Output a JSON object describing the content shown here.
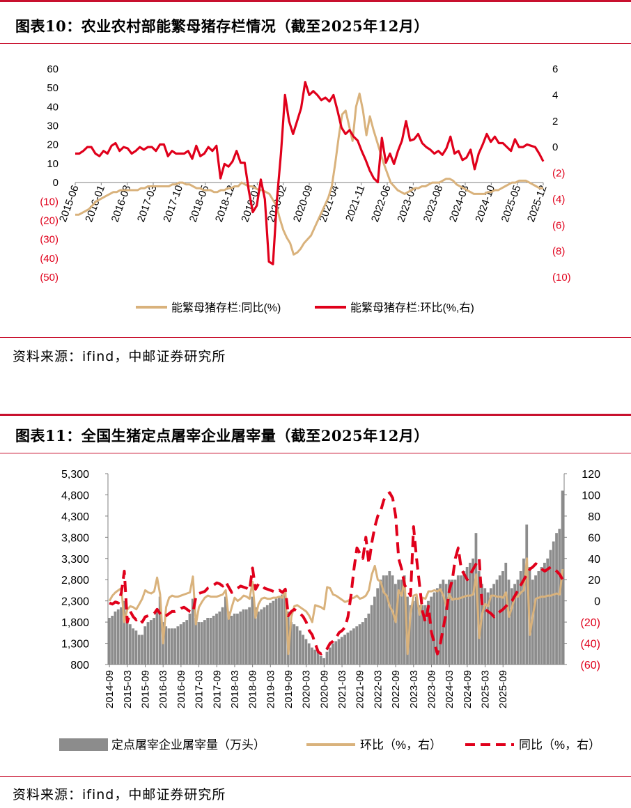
{
  "figure10": {
    "title": "图表10：农业农村部能繁母猪存栏情况（截至2025年12月）",
    "source": "资料来源：ifind，中邮证券研究所",
    "chart_data": {
      "type": "line",
      "title": "农业农村部能繁母猪存栏情况",
      "x_ticks": [
        "2015-06",
        "2016-01",
        "2016-08",
        "2017-03",
        "2017-10",
        "2018-05",
        "2018-12",
        "2019-07",
        "2020-02",
        "2020-09",
        "2021-04",
        "2021-11",
        "2022-06",
        "2023-01",
        "2023-08",
        "2024-03",
        "2024-10",
        "2025-05",
        "2025-12"
      ],
      "y_left_ticks": [
        "60",
        "50",
        "40",
        "30",
        "20",
        "10",
        "0",
        "(10)",
        "(20)",
        "(30)",
        "(40)",
        "(50)"
      ],
      "y_right_ticks": [
        "6",
        "4",
        "2",
        "0",
        "(2)",
        "(4)",
        "(6)",
        "(8)",
        "(10)"
      ],
      "ylim_left": [
        -50,
        60
      ],
      "ylim_right": [
        -10,
        6
      ],
      "series": [
        {
          "name": "能繁母猪存栏:同比(%)",
          "axis": "left",
          "color": "#d9b27c",
          "values": [
            -17,
            -17,
            -16,
            -15,
            -14,
            -12,
            -10,
            -9,
            -8,
            -7,
            -6,
            -5,
            -5,
            -4,
            -4,
            -4,
            -4,
            -4,
            -4,
            -3,
            -3,
            -2,
            -2,
            -2,
            -2,
            -2,
            -2,
            -2,
            -1,
            -1,
            0,
            0,
            -1,
            -1,
            -2,
            -3,
            -3,
            -4,
            -4,
            -4,
            -5,
            -5,
            -4,
            -4,
            -3,
            -3,
            -2,
            -2,
            0,
            -1,
            -2,
            -2,
            -3,
            -4,
            -4,
            -5,
            -6,
            -9,
            -12,
            -19,
            -25,
            -29,
            -32,
            -38,
            -37,
            -35,
            -32,
            -30,
            -28,
            -24,
            -20,
            -16,
            -12,
            -8,
            -2,
            10,
            24,
            36,
            38,
            30,
            22,
            40,
            47,
            38,
            25,
            35,
            28,
            22,
            16,
            10,
            5,
            0,
            -2,
            -4,
            -5,
            -6,
            -5,
            -4,
            -3,
            -3,
            -2,
            -2,
            -1,
            0,
            0,
            0,
            1,
            2,
            2,
            1,
            -1,
            -2,
            -3,
            -4,
            -5,
            -6,
            -6,
            -6,
            -6,
            -5,
            -5,
            -4,
            -4,
            -3,
            -2,
            -1,
            0,
            0,
            1,
            1,
            1,
            0,
            -1,
            -2,
            -3,
            -3
          ]
        },
        {
          "name": "能繁母猪存栏:环比(%,右)",
          "axis": "right",
          "color": "#e0001b",
          "values": [
            -0.5,
            -0.5,
            -0.3,
            0,
            0,
            -0.5,
            -0.7,
            -0.3,
            -0.5,
            0.1,
            0.3,
            -0.3,
            0,
            -0.1,
            -0.5,
            -0.3,
            0,
            -0.2,
            0,
            0,
            -0.3,
            0.2,
            0.2,
            -0.7,
            -0.3,
            -0.5,
            -0.5,
            -0.5,
            -0.3,
            -0.9,
            0.1,
            -0.7,
            -0.5,
            0,
            -0.3,
            0.1,
            -2.4,
            -1.3,
            -1.5,
            -1.1,
            -0.3,
            -1.2,
            -1.2,
            -3.3,
            -5.0,
            -4.5,
            -2.5,
            -4.0,
            -8.8,
            -9.0,
            -4.0,
            -0.5,
            4.0,
            2.0,
            1.0,
            2.0,
            3.0,
            5.0,
            4.0,
            4.3,
            4.0,
            3.6,
            3.8,
            3.5,
            4.0,
            2.8,
            1.5,
            1.0,
            1.3,
            0.8,
            0.5,
            -0.3,
            -1.0,
            -1.8,
            -2.4,
            -2.7,
            0.7,
            -1.2,
            -0.5,
            -1.3,
            -0.3,
            0.5,
            2.0,
            0.5,
            0.6,
            1.0,
            0.3,
            0,
            -0.2,
            -0.5,
            -0.3,
            -0.6,
            -0.1,
            0.8,
            -0.5,
            -0.3,
            -1.0,
            -0.8,
            -0.2,
            -1.7,
            -0.5,
            0.2,
            1.0,
            0.4,
            0.8,
            0.3,
            0.3,
            0,
            -0.3,
            0.6,
            0,
            0,
            0.2,
            0.1,
            0,
            -0.5,
            -1.1
          ]
        }
      ]
    }
  },
  "figure11": {
    "title": "图表11：全国生猪定点屠宰企业屠宰量（截至2025年12月）",
    "source": "资料来源：ifind，中邮证券研究所",
    "chart_data": {
      "type": "bar",
      "title": "全国生猪定点屠宰企业屠宰量",
      "x_ticks": [
        "2014-09",
        "2015-03",
        "2015-09",
        "2016-03",
        "2016-09",
        "2017-03",
        "2017-09",
        "2018-03",
        "2018-09",
        "2019-03",
        "2019-09",
        "2020-03",
        "2020-09",
        "2021-03",
        "2021-09",
        "2022-03",
        "2022-09",
        "2023-03",
        "2023-09",
        "2024-03",
        "2024-09",
        "2025-03",
        "2025-09"
      ],
      "y_left_ticks": [
        "5,300",
        "4,800",
        "4,300",
        "3,800",
        "3,300",
        "2,800",
        "2,300",
        "1,800",
        "1,300",
        "800"
      ],
      "y_right_ticks": [
        "120",
        "100",
        "80",
        "60",
        "40",
        "20",
        "0",
        "(20)",
        "(40)",
        "(60)"
      ],
      "ylim_left": [
        800,
        5300
      ],
      "ylim_right": [
        -60,
        120
      ],
      "series": [
        {
          "name": "定点屠宰企业屠宰量（万头）",
          "axis": "left",
          "kind": "bar",
          "color": "#8c8c8c",
          "values": [
            1900,
            1950,
            2050,
            2100,
            2150,
            2300,
            1800,
            1750,
            1650,
            1600,
            1500,
            1500,
            1700,
            1800,
            1850,
            1900,
            2100,
            2400,
            1800,
            1700,
            1650,
            1650,
            1650,
            1700,
            1750,
            1800,
            1850,
            2000,
            2350,
            1900,
            1800,
            1800,
            1850,
            1900,
            1900,
            1950,
            2000,
            2050,
            2150,
            2400,
            2050,
            1950,
            2000,
            2000,
            2050,
            2100,
            2100,
            2150,
            2400,
            2150,
            2050,
            2100,
            2150,
            2200,
            2250,
            2300,
            2350,
            2400,
            2450,
            2500,
            2050,
            1800,
            1750,
            1700,
            1600,
            1500,
            1400,
            1300,
            1200,
            1150,
            1100,
            1000,
            950,
            1100,
            1200,
            1300,
            1350,
            1400,
            1450,
            1500,
            1550,
            1600,
            1650,
            1700,
            1750,
            1800,
            1900,
            2000,
            2200,
            2400,
            2600,
            2800,
            2900,
            2900,
            3000,
            2900,
            2700,
            2800,
            2800,
            2900,
            2400,
            2200,
            2300,
            2400,
            2200,
            2200,
            2200,
            2300,
            2400,
            2500,
            2600,
            2700,
            2800,
            2700,
            2800,
            2800,
            2800,
            2900,
            2900,
            3000,
            3100,
            3200,
            3300,
            3900,
            3000,
            2700,
            2600,
            2500,
            2600,
            2700,
            2800,
            2900,
            3000,
            3200,
            2800,
            2600,
            2700,
            2800,
            3000,
            3300,
            4100,
            3100,
            2800,
            2900,
            3000,
            3100,
            3200,
            3300,
            3500,
            3700,
            3900,
            4000,
            4900
          ]
        },
        {
          "name": "环比（%，右）",
          "axis": "right",
          "kind": "line",
          "color": "#d9b27c",
          "values": [
            0,
            5,
            8,
            10,
            12,
            -20,
            -8,
            -5,
            -6,
            -8,
            -3,
            2,
            10,
            8,
            7,
            9,
            22,
            6,
            -40,
            -6,
            3,
            5,
            4,
            4,
            5,
            6,
            7,
            8,
            23,
            -22,
            -6,
            -1,
            3,
            5,
            4,
            4,
            4,
            5,
            6,
            10,
            -17,
            -6,
            3,
            0,
            2,
            5,
            4,
            2,
            18,
            -16,
            -3,
            2,
            3,
            2,
            2,
            3,
            3,
            4,
            3,
            10,
            -50,
            -15,
            -5,
            -4,
            -6,
            -8,
            -10,
            -14,
            -20,
            -4,
            -5,
            -6,
            -8,
            13,
            12,
            6,
            5,
            3,
            1,
            -1,
            0,
            2,
            3,
            5,
            2,
            3,
            5,
            10,
            25,
            33,
            20,
            18,
            8,
            5,
            -5,
            -10,
            -20,
            10,
            5,
            20,
            -50,
            -12,
            5,
            6,
            -13,
            3,
            2,
            9,
            9,
            10,
            9,
            11,
            5,
            -5,
            6,
            1,
            2,
            2,
            3,
            4,
            5,
            5,
            6,
            25,
            -35,
            -12,
            -3,
            -5,
            5,
            5,
            4,
            4,
            3,
            8,
            -15,
            -6,
            4,
            4,
            8,
            10,
            40,
            -32,
            -14,
            2,
            3,
            4,
            4,
            5,
            5,
            6,
            7,
            6,
            30
          ]
        },
        {
          "name": "同比（%，右）",
          "axis": "right",
          "kind": "dashed-line",
          "color": "#e0001b",
          "values": [
            -2,
            -3,
            -1,
            -2,
            8,
            28,
            -20,
            -10,
            -15,
            -18,
            -16,
            -20,
            -15,
            -14,
            -13,
            -12,
            -8,
            -12,
            -15,
            -14,
            -12,
            -10,
            -10,
            -9,
            -7,
            -6,
            -8,
            -10,
            -11,
            4,
            7,
            8,
            9,
            12,
            13,
            15,
            17,
            16,
            14,
            18,
            13,
            8,
            10,
            12,
            14,
            13,
            12,
            10,
            31,
            11,
            16,
            15,
            12,
            11,
            10,
            9,
            8,
            10,
            8,
            11,
            -14,
            -10,
            -8,
            -10,
            -12,
            -15,
            -20,
            -28,
            -32,
            -40,
            -48,
            -50,
            -48,
            -45,
            -40,
            -38,
            -35,
            -30,
            -28,
            -25,
            -15,
            5,
            30,
            50,
            45,
            40,
            60,
            35,
            55,
            70,
            80,
            85,
            95,
            100,
            102,
            97,
            80,
            40,
            30,
            15,
            10,
            5,
            70,
            40,
            15,
            -10,
            -20,
            -5,
            -30,
            -40,
            -50,
            -40,
            -25,
            -10,
            10,
            20,
            40,
            50,
            30,
            25,
            20,
            25,
            30,
            35,
            40,
            -5,
            -8,
            -10,
            -12,
            -15,
            -12,
            -10,
            -8,
            -5,
            -2,
            0,
            5,
            10,
            15,
            20,
            25,
            30,
            32,
            35,
            33,
            30,
            28,
            30,
            32,
            30,
            28,
            25,
            20,
            16
          ]
        }
      ]
    }
  }
}
